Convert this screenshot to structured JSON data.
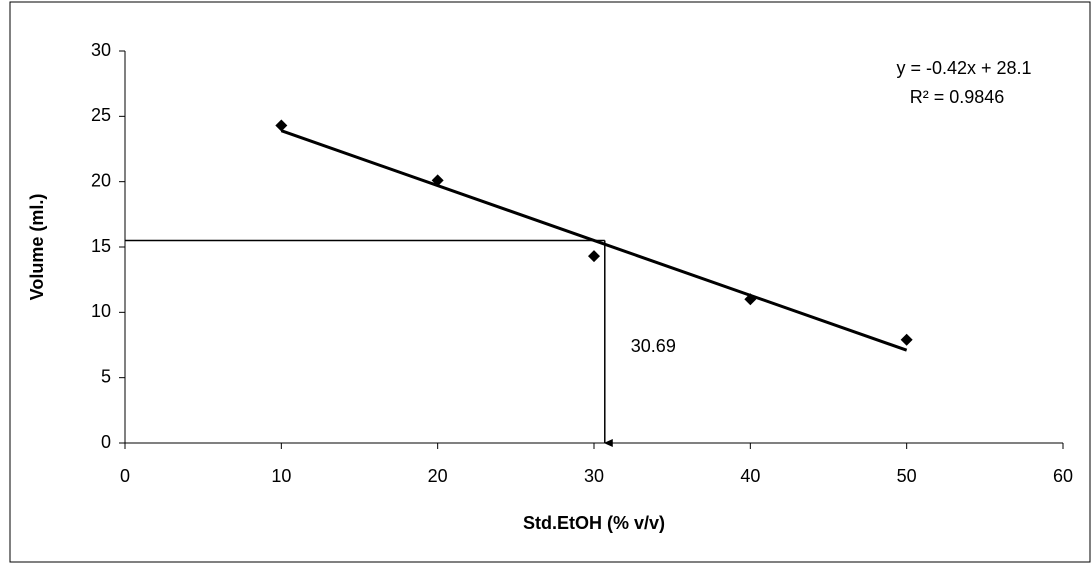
{
  "chart_data": {
    "type": "scatter",
    "x_label": "Std.EtOH (% v/v)",
    "y_label": "Volume (ml.)",
    "series": [
      {
        "x": [
          10,
          20,
          30,
          40,
          50
        ],
        "values": [
          24.3,
          20.1,
          14.3,
          11.0,
          7.9
        ],
        "color": "#000000"
      }
    ],
    "trendline": {
      "x": [
        10,
        50
      ],
      "values": [
        23.9,
        7.1
      ],
      "equation": "y = -0.42x + 28.1",
      "r_squared": "R² = 0.9846"
    },
    "guide": {
      "x": 30.69,
      "y": 15.5
    },
    "xlim": [
      0,
      60
    ],
    "xticks": [
      0,
      10,
      20,
      30,
      40,
      50,
      60
    ],
    "ylim": [
      0,
      30
    ],
    "yticks": [
      0,
      5,
      10,
      15,
      20,
      25,
      30
    ]
  }
}
